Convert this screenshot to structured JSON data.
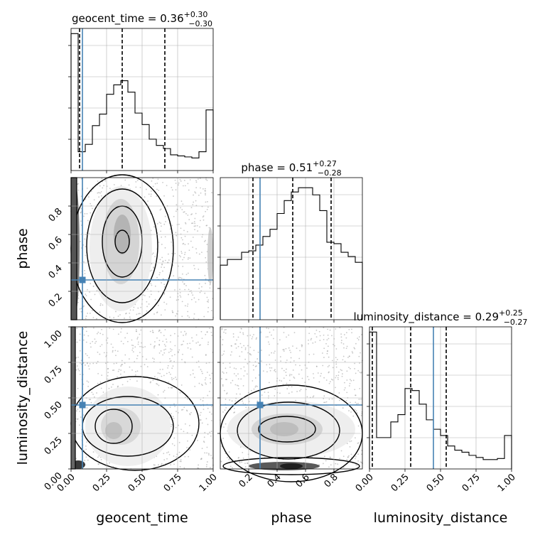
{
  "chart_data": [
    {
      "type": "histogram",
      "parameter": "geocent_time",
      "title": "geocent_time = 0.36",
      "title_sup": "+0.30",
      "title_sub": "−0.30",
      "xlim": [
        0,
        1
      ],
      "bin_edges": [
        0.0,
        0.05,
        0.1,
        0.15,
        0.2,
        0.25,
        0.3,
        0.35,
        0.4,
        0.45,
        0.5,
        0.55,
        0.6,
        0.65,
        0.7,
        0.75,
        0.8,
        0.85,
        0.9,
        0.95,
        1.0
      ],
      "density": [
        1.31,
        0.18,
        0.25,
        0.43,
        0.54,
        0.73,
        0.82,
        0.86,
        0.75,
        0.55,
        0.44,
        0.3,
        0.24,
        0.21,
        0.15,
        0.14,
        0.13,
        0.12,
        0.18,
        0.58
      ],
      "ylim": [
        0,
        1.36
      ],
      "quantiles": [
        0.06,
        0.36,
        0.66
      ],
      "truth": 0.08,
      "x_ticks": [
        0.0,
        0.25,
        0.5,
        0.75,
        1.0
      ]
    },
    {
      "type": "histogram",
      "parameter": "phase",
      "title": "phase = 0.51",
      "title_sup": "+0.27",
      "title_sub": "−0.28",
      "xlim": [
        0.0,
        1.0
      ],
      "bin_edges": [
        0.0,
        0.05,
        0.1,
        0.15,
        0.2,
        0.25,
        0.3,
        0.35,
        0.4,
        0.45,
        0.5,
        0.55,
        0.6,
        0.65,
        0.7,
        0.75,
        0.8,
        0.85,
        0.9,
        0.95,
        1.0
      ],
      "density": [
        0.38,
        0.42,
        0.42,
        0.47,
        0.48,
        0.52,
        0.58,
        0.63,
        0.74,
        0.83,
        0.89,
        0.92,
        0.92,
        0.87,
        0.76,
        0.54,
        0.53,
        0.47,
        0.44,
        0.4
      ],
      "ylim": [
        0,
        0.99
      ],
      "quantiles": [
        0.23,
        0.51,
        0.78
      ],
      "truth": 0.28,
      "x_ticks": [
        0.2,
        0.4,
        0.6,
        0.8
      ]
    },
    {
      "type": "histogram",
      "parameter": "luminosity_distance",
      "title": "luminosity_distance = 0.29",
      "title_sup": "+0.25",
      "title_sub": "−0.27",
      "xlim": [
        0,
        1
      ],
      "bin_edges": [
        0.0,
        0.05,
        0.1,
        0.15,
        0.2,
        0.25,
        0.3,
        0.35,
        0.4,
        0.45,
        0.5,
        0.55,
        0.6,
        0.65,
        0.7,
        0.75,
        0.8,
        0.85,
        0.9,
        0.95,
        1.0
      ],
      "density": [
        1.31,
        0.3,
        0.3,
        0.45,
        0.52,
        0.77,
        0.75,
        0.62,
        0.47,
        0.38,
        0.32,
        0.22,
        0.18,
        0.16,
        0.13,
        0.11,
        0.09,
        0.09,
        0.1,
        0.32
      ],
      "ylim": [
        0,
        1.36
      ],
      "quantiles": [
        0.02,
        0.29,
        0.54
      ],
      "truth": 0.45,
      "x_ticks": [
        0.0,
        0.25,
        0.5,
        0.75,
        1.0
      ]
    },
    {
      "type": "2d-density",
      "x": "phase_row_geocent_time",
      "x_param": "geocent_time",
      "y_param": "phase",
      "xlim": [
        0,
        1
      ],
      "ylim": [
        0.0,
        1.0
      ],
      "truth": [
        0.08,
        0.28
      ],
      "y_ticks": [
        0.2,
        0.4,
        0.6,
        0.8
      ]
    },
    {
      "type": "2d-density",
      "x_param": "geocent_time",
      "y_param": "luminosity_distance",
      "xlim": [
        0,
        1
      ],
      "ylim": [
        0,
        1
      ],
      "truth": [
        0.08,
        0.45
      ],
      "x_ticks": [
        0.0,
        0.25,
        0.5,
        0.75,
        1.0
      ],
      "y_ticks": [
        0.0,
        0.25,
        0.5,
        0.75,
        1.0
      ]
    },
    {
      "type": "2d-density",
      "x_param": "phase",
      "y_param": "luminosity_distance",
      "xlim": [
        0.0,
        1.0
      ],
      "ylim": [
        0,
        1
      ],
      "truth": [
        0.28,
        0.45
      ],
      "x_ticks": [
        0.2,
        0.4,
        0.6,
        0.8
      ]
    }
  ],
  "axis_labels": {
    "x1": "geocent_time",
    "x2": "phase",
    "x3": "luminosity_distance",
    "y2": "phase",
    "y3": "luminosity_distance"
  },
  "tick_labels": {
    "x_frac": [
      "0.00",
      "0.25",
      "0.50",
      "0.75",
      "1.00"
    ],
    "phase": [
      "0.2",
      "0.4",
      "0.6",
      "0.8"
    ]
  },
  "colors": {
    "truth": "#4682b4",
    "hist": "#000000",
    "grid": "#b0b0b0"
  }
}
